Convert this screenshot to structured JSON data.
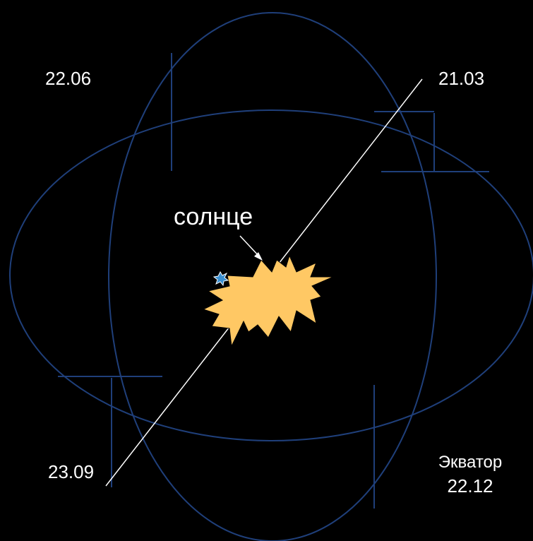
{
  "labels": {
    "june": "22.06",
    "march": "21.03",
    "sun": "солнце",
    "september": "23.09",
    "equator": "Экватор",
    "december": "22.12"
  }
}
